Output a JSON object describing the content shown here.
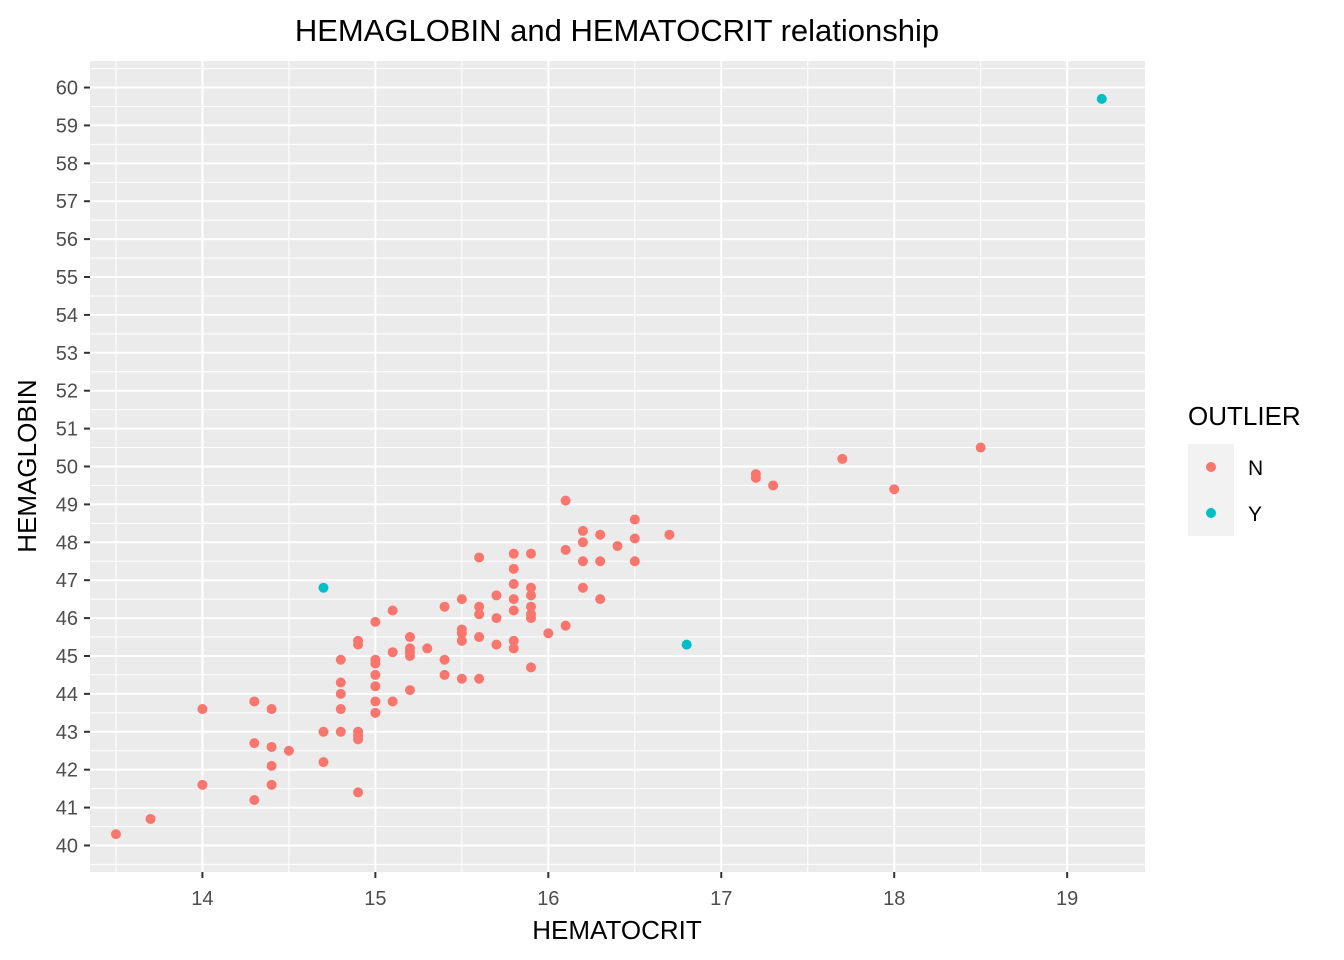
{
  "chart_data": {
    "type": "scatter",
    "title": "HEMAGLOBIN and HEMATOCRIT relationship",
    "xlabel": "HEMATOCRIT",
    "ylabel": "HEMAGLOBIN",
    "xlim": [
      13.35,
      19.45
    ],
    "ylim": [
      39.3,
      60.7
    ],
    "xticks": [
      14,
      15,
      16,
      17,
      18,
      19
    ],
    "yticks": [
      40,
      41,
      42,
      43,
      44,
      45,
      46,
      47,
      48,
      49,
      50,
      51,
      52,
      53,
      54,
      55,
      56,
      57,
      58,
      59,
      60
    ],
    "grid": true,
    "legend": {
      "title": "OUTLIER",
      "placement": "right",
      "entries": [
        {
          "label": "N",
          "color": "#F8766D"
        },
        {
          "label": "Y",
          "color": "#00BFC4"
        }
      ]
    },
    "series": [
      {
        "name": "N",
        "color": "#F8766D",
        "points": [
          [
            13.5,
            40.3
          ],
          [
            13.7,
            40.7
          ],
          [
            14.0,
            43.6
          ],
          [
            14.0,
            41.6
          ],
          [
            14.3,
            43.8
          ],
          [
            14.3,
            42.7
          ],
          [
            14.3,
            41.2
          ],
          [
            14.4,
            43.6
          ],
          [
            14.4,
            42.6
          ],
          [
            14.4,
            42.1
          ],
          [
            14.4,
            41.6
          ],
          [
            14.5,
            42.5
          ],
          [
            14.7,
            43.0
          ],
          [
            14.7,
            42.2
          ],
          [
            14.8,
            44.9
          ],
          [
            14.8,
            44.3
          ],
          [
            14.8,
            44.0
          ],
          [
            14.8,
            43.6
          ],
          [
            14.8,
            43.0
          ],
          [
            14.9,
            45.4
          ],
          [
            14.9,
            45.3
          ],
          [
            14.9,
            43.0
          ],
          [
            14.9,
            42.9
          ],
          [
            14.9,
            42.8
          ],
          [
            14.9,
            41.4
          ],
          [
            15.0,
            45.9
          ],
          [
            15.0,
            44.9
          ],
          [
            15.0,
            44.8
          ],
          [
            15.0,
            44.5
          ],
          [
            15.0,
            44.2
          ],
          [
            15.0,
            43.8
          ],
          [
            15.0,
            43.5
          ],
          [
            15.1,
            46.2
          ],
          [
            15.1,
            45.1
          ],
          [
            15.1,
            43.8
          ],
          [
            15.2,
            45.5
          ],
          [
            15.2,
            45.2
          ],
          [
            15.2,
            45.1
          ],
          [
            15.2,
            45.0
          ],
          [
            15.2,
            44.1
          ],
          [
            15.3,
            45.2
          ],
          [
            15.4,
            46.3
          ],
          [
            15.4,
            44.9
          ],
          [
            15.4,
            44.5
          ],
          [
            15.5,
            46.5
          ],
          [
            15.5,
            45.7
          ],
          [
            15.5,
            45.6
          ],
          [
            15.5,
            45.4
          ],
          [
            15.5,
            44.4
          ],
          [
            15.6,
            47.6
          ],
          [
            15.6,
            46.3
          ],
          [
            15.6,
            46.1
          ],
          [
            15.6,
            45.5
          ],
          [
            15.6,
            44.4
          ],
          [
            15.7,
            46.6
          ],
          [
            15.7,
            46.0
          ],
          [
            15.7,
            45.3
          ],
          [
            15.8,
            47.7
          ],
          [
            15.8,
            47.3
          ],
          [
            15.8,
            46.9
          ],
          [
            15.8,
            46.5
          ],
          [
            15.8,
            46.2
          ],
          [
            15.8,
            45.4
          ],
          [
            15.8,
            45.2
          ],
          [
            15.9,
            47.7
          ],
          [
            15.9,
            46.8
          ],
          [
            15.9,
            46.6
          ],
          [
            15.9,
            46.3
          ],
          [
            15.9,
            46.1
          ],
          [
            15.9,
            46.0
          ],
          [
            15.9,
            44.7
          ],
          [
            16.0,
            45.6
          ],
          [
            16.1,
            49.1
          ],
          [
            16.1,
            47.8
          ],
          [
            16.1,
            45.8
          ],
          [
            16.2,
            48.3
          ],
          [
            16.2,
            48.0
          ],
          [
            16.2,
            47.5
          ],
          [
            16.2,
            46.8
          ],
          [
            16.3,
            48.2
          ],
          [
            16.3,
            47.5
          ],
          [
            16.3,
            46.5
          ],
          [
            16.4,
            47.9
          ],
          [
            16.5,
            48.6
          ],
          [
            16.5,
            48.1
          ],
          [
            16.5,
            47.5
          ],
          [
            16.7,
            48.2
          ],
          [
            17.2,
            49.8
          ],
          [
            17.2,
            49.7
          ],
          [
            17.3,
            49.5
          ],
          [
            17.7,
            50.2
          ],
          [
            18.0,
            49.4
          ],
          [
            18.5,
            50.5
          ]
        ]
      },
      {
        "name": "Y",
        "color": "#00BFC4",
        "points": [
          [
            14.7,
            46.8
          ],
          [
            16.8,
            45.3
          ],
          [
            19.2,
            59.7
          ]
        ]
      }
    ]
  }
}
